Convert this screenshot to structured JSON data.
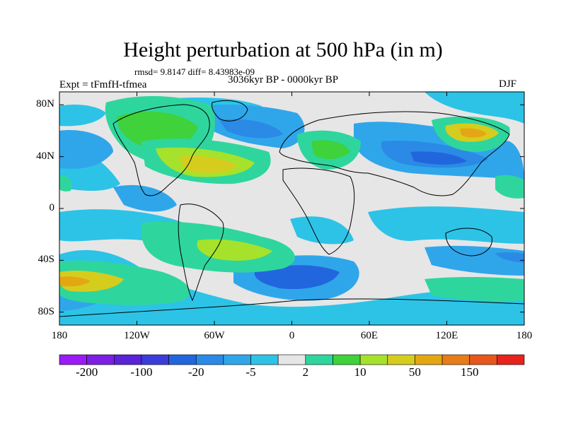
{
  "title": "Height perturbation at 500 hPa (in m)",
  "stats_line": "rmsd= 9.8147 diff= 8.43983e-09",
  "experiment_label": "Expt = tFmfH-tfmea",
  "period_label": "3036kyr BP - 0000kyr BP",
  "season_label": "DJF",
  "map": {
    "projection": "cylindrical-equidistant",
    "lon_range": [
      -180,
      180
    ],
    "lat_range": [
      -90,
      90
    ],
    "lat_ticks": [
      {
        "value": 80,
        "label": "80N"
      },
      {
        "value": 40,
        "label": "40N"
      },
      {
        "value": 0,
        "label": "0"
      },
      {
        "value": -40,
        "label": "40S"
      },
      {
        "value": -80,
        "label": "80S"
      }
    ],
    "lon_ticks": [
      {
        "value": -180,
        "label": "180"
      },
      {
        "value": -120,
        "label": "120W"
      },
      {
        "value": -60,
        "label": "60W"
      },
      {
        "value": 0,
        "label": "0"
      },
      {
        "value": 60,
        "label": "60E"
      },
      {
        "value": 120,
        "label": "120E"
      },
      {
        "value": 180,
        "label": "180"
      }
    ],
    "background_color": "#e6e6e6",
    "coastline_color": "#000000"
  },
  "colorbar": {
    "colors": [
      "#9a1bf5",
      "#7c1ee3",
      "#5a23d8",
      "#3b3ddb",
      "#2266dd",
      "#2b8ae6",
      "#2fa6ea",
      "#2dc3e6",
      "#e6e6e6",
      "#2ed69d",
      "#3fd23a",
      "#a6e22c",
      "#d6cc1e",
      "#e4a713",
      "#e77d19",
      "#e8561c",
      "#e6231c"
    ],
    "labels": [
      {
        "after_box": 1,
        "text": "-200"
      },
      {
        "after_box": 3,
        "text": "-100"
      },
      {
        "after_box": 5,
        "text": "-20"
      },
      {
        "after_box": 7,
        "text": "-5"
      },
      {
        "after_box": 9,
        "text": "2"
      },
      {
        "after_box": 11,
        "text": "10"
      },
      {
        "after_box": 13,
        "text": "50"
      },
      {
        "after_box": 15,
        "text": "150"
      }
    ]
  }
}
